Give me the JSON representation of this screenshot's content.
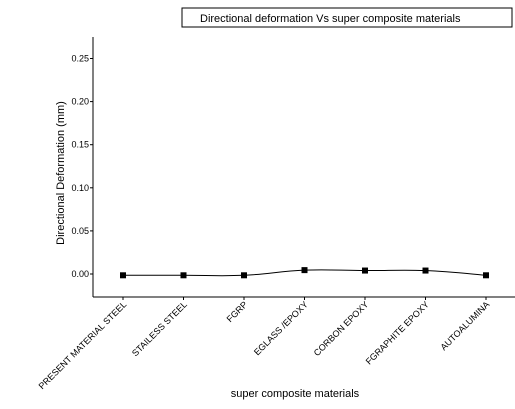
{
  "chart_data": {
    "type": "line",
    "title": "Directional deformation  Vs super composite materials",
    "xlabel": "super composite materials",
    "ylabel": "Directional  Deformation (mm)",
    "categories": [
      "PRESENT MATERIAL STEEL",
      "STAILESS STEEL",
      "FGRP",
      "EGLASS /EPOXY",
      "CORBON EPOXY",
      "FGRAPHITE EPOXY",
      "AUTOALUMINA"
    ],
    "series": [
      {
        "values": [
          -0.0015,
          -0.0015,
          -0.0015,
          0.0045,
          0.004,
          0.004,
          -0.0015
        ]
      }
    ],
    "ylim": [
      -0.025,
      0.275
    ],
    "yticks": [
      0.0,
      0.05,
      0.1,
      0.15,
      0.2,
      0.25
    ],
    "ytick_labels": [
      "0.00",
      "0.05",
      "0.10",
      "0.15",
      "0.20",
      "0.25"
    ],
    "grid": false,
    "legend_position": "top-right",
    "line_color": "#000000",
    "marker": "square"
  }
}
